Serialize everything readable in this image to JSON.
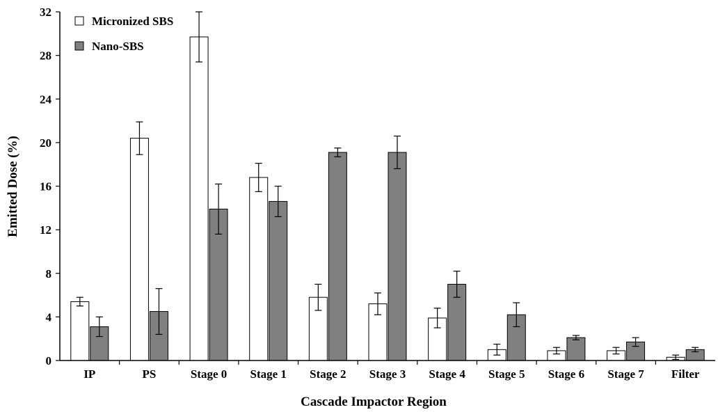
{
  "chart_data": {
    "type": "bar",
    "title": "",
    "xlabel": "Cascade Impactor Region",
    "ylabel": "Emitted Dose (%)",
    "ylim": [
      0,
      32
    ],
    "yticks": [
      "0",
      "4",
      "8",
      "12",
      "16",
      "20",
      "24",
      "28",
      "32"
    ],
    "categories": [
      "IP",
      "PS",
      "Stage 0",
      "Stage 1",
      "Stage 2",
      "Stage 3",
      "Stage 4",
      "Stage 5",
      "Stage 6",
      "Stage 7",
      "Filter"
    ],
    "series": [
      {
        "name": "Micronized SBS",
        "color": "#ffffff",
        "values": [
          5.4,
          20.4,
          29.7,
          16.8,
          5.8,
          5.2,
          3.9,
          1.0,
          0.9,
          0.9,
          0.3
        ],
        "errors": [
          0.4,
          1.5,
          2.3,
          1.3,
          1.2,
          1.0,
          0.9,
          0.5,
          0.3,
          0.3,
          0.2
        ]
      },
      {
        "name": "Nano-SBS",
        "color": "#808080",
        "values": [
          3.1,
          4.5,
          13.9,
          14.6,
          19.1,
          19.1,
          7.0,
          4.2,
          2.1,
          1.7,
          1.0
        ],
        "errors": [
          0.9,
          2.1,
          2.3,
          1.4,
          0.4,
          1.5,
          1.2,
          1.1,
          0.2,
          0.4,
          0.2
        ]
      }
    ],
    "legend_position": "top-left",
    "grid": false
  }
}
